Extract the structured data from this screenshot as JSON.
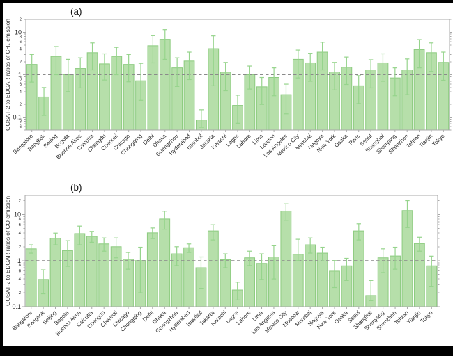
{
  "figure": {
    "background": "#ffffff",
    "frame_color": "#000000",
    "panel_labels": [
      "(a)",
      "(b)"
    ]
  },
  "chart_data": [
    {
      "type": "bar",
      "panel_label": "(a)",
      "title": "",
      "xlabel": "",
      "ylabel": "GOSAT-2 to EDGAR ratios of CH₄ emission",
      "yscale": "log",
      "ylim": [
        0.05,
        20
      ],
      "ytick_major": [
        0.1,
        1,
        10
      ],
      "reference_line": 1.0,
      "grid": false,
      "legend": null,
      "bar_color": "#b6dfaa",
      "bar_edge_color": "#8ccb7f",
      "error_color": "#96d48c",
      "reference_color": "#8a8a8a",
      "axis_color": "#a8a8a8",
      "categories": [
        "Bangalore",
        "Bangkok",
        "Beijing",
        "Bogota",
        "Buenos Aires",
        "Calcutta",
        "Chengdu",
        "Chennai",
        "Chicago",
        "Chongqing",
        "Delhi",
        "Dhaka",
        "Guangzhou",
        "Hyderabad",
        "Istanbul",
        "Jakarta",
        "Karachi",
        "Lagos",
        "Lahore",
        "Lima",
        "London",
        "Los Angeles",
        "Mexico City",
        "Mumbai",
        "Nagoya",
        "New York",
        "Osaka",
        "Paris",
        "Seoul",
        "Shanghai",
        "Shenyang",
        "Shenzhen",
        "Tehran",
        "Tianjin",
        "Tokyo"
      ],
      "values": [
        1.75,
        0.3,
        2.7,
        1.0,
        1.4,
        3.3,
        1.8,
        2.7,
        1.75,
        0.72,
        4.8,
        6.8,
        1.45,
        2.1,
        0.086,
        4.1,
        1.15,
        0.19,
        1.0,
        0.52,
        0.86,
        0.34,
        2.3,
        1.9,
        3.4,
        1.16,
        1.5,
        0.55,
        1.3,
        1.9,
        0.84,
        1.3,
        3.9,
        3.3,
        1.95
      ],
      "err_low": [
        0.67,
        0.11,
        1.0,
        0.4,
        0.49,
        1.3,
        0.75,
        1.0,
        0.68,
        0.25,
        1.9,
        2.3,
        0.53,
        0.77,
        0.058,
        0.55,
        0.42,
        0.072,
        0.46,
        0.2,
        0.32,
        0.12,
        0.84,
        0.7,
        1.3,
        0.44,
        0.59,
        0.21,
        0.49,
        0.7,
        0.32,
        0.34,
        1.45,
        1.2,
        0.74
      ],
      "err_high": [
        3.0,
        0.5,
        4.6,
        2.3,
        2.5,
        5.6,
        3.1,
        4.4,
        3.0,
        1.85,
        8.3,
        11.5,
        2.5,
        3.4,
        0.15,
        8.2,
        1.95,
        0.33,
        1.6,
        0.86,
        1.45,
        0.6,
        3.8,
        3.2,
        5.8,
        1.95,
        2.6,
        0.95,
        2.25,
        3.1,
        1.45,
        2.35,
        6.7,
        5.6,
        3.4
      ]
    },
    {
      "type": "bar",
      "panel_label": "(b)",
      "title": "",
      "xlabel": "",
      "ylabel": "GOSAT-2 to EDGAR ratios of CO emission",
      "yscale": "log",
      "ylim": [
        0.1,
        26
      ],
      "ytick_major": [
        0.1,
        1,
        10
      ],
      "reference_line": 1.0,
      "grid": false,
      "legend": null,
      "bar_color": "#b6dfaa",
      "bar_edge_color": "#8ccb7f",
      "error_color": "#96d48c",
      "reference_color": "#8a8a8a",
      "axis_color": "#a8a8a8",
      "categories": [
        "Bangalore",
        "Bangkok",
        "Beijing",
        "Bogota",
        "Buenos Aires",
        "Calcutta",
        "Chengdu",
        "Chennai",
        "Chicago",
        "Chongqing",
        "Delhi",
        "Dhaka",
        "Guangzhou",
        "Hyderabad",
        "Istanbul",
        "Jakarta",
        "Karachi",
        "Lagos",
        "Lahore",
        "Lima",
        "Los Angeles",
        "Mexico City",
        "Moscow",
        "Mumbai",
        "Nagoya",
        "New York",
        "Osaka",
        "Seoul",
        "Shanghai",
        "Shenyang",
        "Shenzhen",
        "Tehran",
        "Tianjin",
        "Tokyo"
      ],
      "values": [
        1.8,
        0.39,
        3.05,
        1.65,
        3.85,
        3.35,
        2.3,
        2.0,
        1.07,
        1.0,
        4.0,
        8.0,
        1.4,
        1.9,
        0.7,
        4.4,
        1.05,
        0.23,
        1.15,
        0.87,
        1.2,
        11.9,
        1.37,
        2.2,
        1.45,
        0.59,
        0.77,
        4.4,
        0.175,
        1.15,
        1.26,
        12.2,
        2.34,
        0.77
      ],
      "err_low": [
        1.45,
        0.19,
        2.2,
        0.75,
        2.2,
        2.5,
        1.6,
        1.15,
        0.65,
        0.2,
        3.0,
        4.8,
        0.78,
        1.5,
        0.25,
        2.8,
        0.7,
        0.14,
        0.78,
        0.39,
        0.4,
        7.5,
        1.0,
        1.45,
        0.98,
        0.26,
        0.37,
        2.8,
        0.135,
        0.55,
        0.65,
        5.2,
        1.6,
        0.27
      ],
      "err_high": [
        2.2,
        0.63,
        3.95,
        2.7,
        5.6,
        4.3,
        3.1,
        3.1,
        1.5,
        1.95,
        5.1,
        11.8,
        2.0,
        2.3,
        1.2,
        6.0,
        1.4,
        0.34,
        1.6,
        1.4,
        2.1,
        17.0,
        2.9,
        3.1,
        1.95,
        1.0,
        1.12,
        6.3,
        0.37,
        1.8,
        1.95,
        20.0,
        3.2,
        1.25
      ]
    }
  ]
}
